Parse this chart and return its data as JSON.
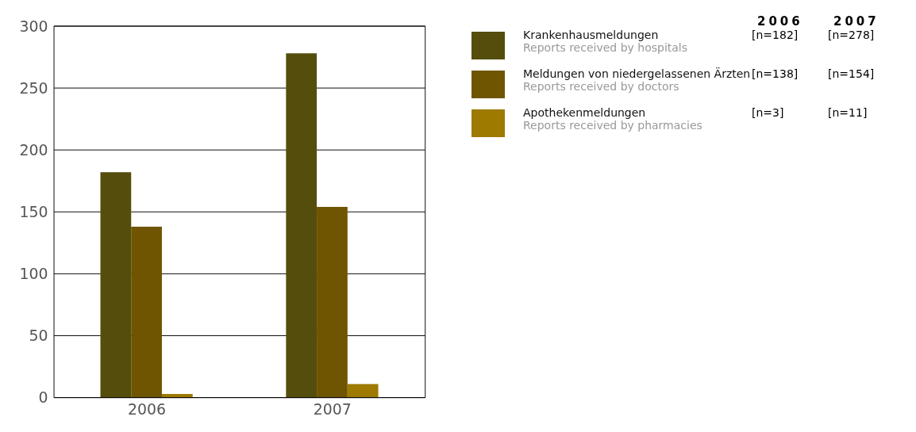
{
  "chart_data": {
    "type": "bar",
    "categories": [
      "2006",
      "2007"
    ],
    "series": [
      {
        "name": "Krankenhausmeldungen\nReports received by hospitals",
        "color": "#554d0c",
        "values": [
          182,
          278
        ]
      },
      {
        "name": "Meldungen von niedergelassenen Ärzten\nReports received by doctors",
        "color": "#6f5501",
        "values": [
          138,
          154
        ]
      },
      {
        "name": "Apothekenmeldungen\nReports received by pharmacies",
        "color": "#9e7a00",
        "values": [
          3,
          11
        ]
      }
    ],
    "annotations": [
      "[n=182]",
      "[n=278]",
      "[n=138]",
      "[n=154]",
      "[n=3]",
      "[n=11]"
    ],
    "ylim": [
      0,
      300
    ],
    "yticks": [
      0,
      50,
      100,
      150,
      200,
      250,
      300
    ],
    "grid": "y",
    "legend": "top right"
  }
}
